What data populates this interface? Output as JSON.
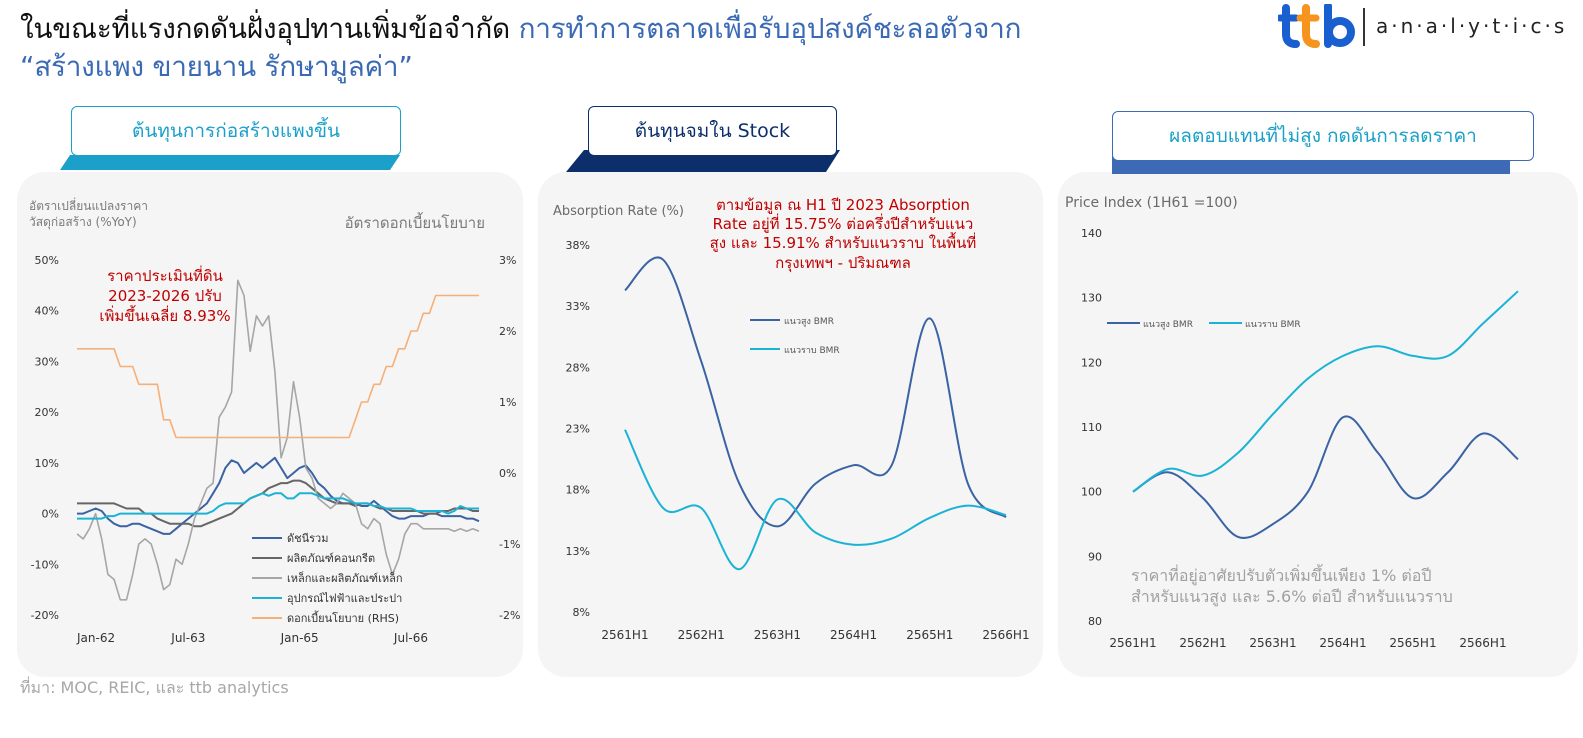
{
  "header": {
    "title_black": "ในขณะที่แรงกดดันฝั่งอุปทานเพิ่มข้อจำกัด",
    "title_blue": "การทำการตลาดเพื่อรับอุปสงค์ชะลอตัวจาก",
    "title_line2": "“สร้างแพง ขายนาน รักษามูลค่า”"
  },
  "logo": {
    "mark": "ttb",
    "text": "a·n·a·l·y·t·i·c·s",
    "colors": [
      "#1a5fcf",
      "#f7941d"
    ]
  },
  "panels": {
    "left": {
      "tab": "ต้นทุนการก่อสร้างแพงขึ้น"
    },
    "middle": {
      "tab": "ต้นทุนจมใน Stock"
    },
    "right": {
      "tab": "ผลตอบแทนที่ไม่สูง กดดันการลดราคา"
    }
  },
  "source": "ที่มา: MOC, REIC, และ ttb analytics",
  "colors": {
    "dark_blue": "#3a63a3",
    "cyan": "#1ab3d6",
    "gray": "#a6a6a6",
    "dark_gray": "#666666",
    "orange": "#f5b07a",
    "red": "#c00000",
    "navy": "#0c2f6b",
    "teal_tab": "#1aa0c9"
  },
  "chart_data": [
    {
      "type": "line",
      "ylabel_lines": [
        "อัตราเปลี่ยนแปลงราคา",
        "วัสดุก่อสร้าง (%YoY)"
      ],
      "y2label": "อัตราดอกเบี้ยนโยบาย",
      "annotation_lines": [
        "ราคาประเมินที่ดิน",
        "2023-2026 ปรับ",
        "เพิ่มขึ้นเฉลี่ย 8.93%"
      ],
      "x_ticks": [
        "Jan-62",
        "Jul-63",
        "Jan-65",
        "Jul-66"
      ],
      "x_tick_index": [
        0,
        18,
        36,
        54
      ],
      "n_points": 66,
      "ylim": [
        -20,
        50
      ],
      "y_ticks": [
        "50%",
        "40%",
        "30%",
        "20%",
        "10%",
        "0%",
        "-10%",
        "-20%"
      ],
      "y2lim": [
        -2,
        3
      ],
      "y2_ticks": [
        "3%",
        "2%",
        "1%",
        "0%",
        "-1%",
        "-2%"
      ],
      "series": [
        {
          "name": "ดัชนีรวม",
          "color_key": "dark_blue",
          "axis": "left",
          "values": [
            0,
            0,
            0.5,
            1,
            0.5,
            -1,
            -2,
            -2.5,
            -2.5,
            -2,
            -2,
            -2.5,
            -3,
            -3.5,
            -4,
            -4,
            -3,
            -2,
            -1,
            0,
            1,
            2,
            4,
            6,
            9,
            10.5,
            10,
            8,
            9,
            10,
            9,
            10,
            11,
            9,
            7,
            8,
            9,
            9.5,
            8,
            6,
            5,
            3.5,
            2.5,
            2,
            2,
            2,
            1.5,
            1.5,
            2.5,
            1.5,
            0.5,
            -0.5,
            -1,
            -1,
            -0.5,
            -0.5,
            -0.5,
            0,
            0,
            -0.5,
            -0.5,
            -0.5,
            -0.5,
            -1,
            -1,
            -1.5
          ]
        },
        {
          "name": "ผลิตภัณฑ์คอนกรีต",
          "color_key": "dark_gray",
          "axis": "left",
          "values": [
            2,
            2,
            2,
            2,
            2,
            2,
            2,
            1.5,
            1,
            1,
            1,
            0,
            0,
            -1,
            -1.5,
            -2,
            -2,
            -2,
            -2,
            -2.5,
            -2.5,
            -2,
            -1.5,
            -1,
            -0.5,
            0,
            1,
            2,
            3,
            3.5,
            4,
            5,
            5.5,
            6,
            6,
            6.5,
            6.5,
            6,
            5,
            4,
            3,
            2.5,
            2,
            2,
            2,
            1.5,
            2,
            2,
            1.5,
            1,
            1,
            0.5,
            0.5,
            0.5,
            0.5,
            0.5,
            0,
            0,
            0,
            0.5,
            0.5,
            1,
            1,
            1,
            0.5,
            0.5
          ]
        },
        {
          "name": "เหล็กและผลิตภัณฑ์เหล็ก",
          "color_key": "gray",
          "axis": "left",
          "values": [
            -4,
            -5,
            -3,
            0,
            -5,
            -12,
            -13,
            -17,
            -17,
            -12,
            -6,
            -5,
            -6,
            -10,
            -15,
            -14,
            -9,
            -10,
            -6,
            -1,
            2,
            5,
            6,
            19,
            21,
            24,
            46,
            43,
            32,
            39,
            37,
            39,
            28,
            11,
            15,
            26,
            19,
            9,
            7,
            3,
            2,
            1,
            2,
            4,
            3,
            2,
            -2,
            -3,
            -1,
            -2,
            -8,
            -12,
            -9,
            -4,
            -2,
            -2,
            -3,
            -3,
            -3,
            -3,
            -3,
            -3.5,
            -3,
            -3.5,
            -3,
            -3.5
          ]
        },
        {
          "name": "อุปกรณ์ไฟฟ้าและประปา",
          "color_key": "cyan",
          "axis": "left",
          "values": [
            -1,
            -1,
            -1,
            -1,
            -1,
            -0.5,
            -0.5,
            0,
            0,
            0,
            0,
            0,
            0,
            0,
            0,
            0,
            0,
            0,
            0,
            0,
            0,
            0,
            0.5,
            1.5,
            2,
            2,
            2,
            2,
            3,
            3.5,
            4,
            3.5,
            4,
            4,
            3,
            3,
            4,
            4,
            4,
            3.5,
            3,
            3,
            3,
            3,
            2.5,
            2,
            2,
            2,
            1.5,
            1.5,
            1,
            1,
            1,
            1,
            1,
            0.5,
            0.5,
            0.5,
            0.5,
            0.5,
            0,
            0.5,
            1.5,
            1,
            1,
            1
          ]
        },
        {
          "name": "ดอกเบี้ยนโยบาย (RHS)",
          "color_key": "orange",
          "axis": "right",
          "values": [
            1.75,
            1.75,
            1.75,
            1.75,
            1.75,
            1.75,
            1.75,
            1.5,
            1.5,
            1.5,
            1.25,
            1.25,
            1.25,
            1.25,
            0.75,
            0.75,
            0.5,
            0.5,
            0.5,
            0.5,
            0.5,
            0.5,
            0.5,
            0.5,
            0.5,
            0.5,
            0.5,
            0.5,
            0.5,
            0.5,
            0.5,
            0.5,
            0.5,
            0.5,
            0.5,
            0.5,
            0.5,
            0.5,
            0.5,
            0.5,
            0.5,
            0.5,
            0.5,
            0.5,
            0.5,
            0.75,
            1,
            1,
            1.25,
            1.25,
            1.5,
            1.5,
            1.75,
            1.75,
            2,
            2,
            2.25,
            2.25,
            2.5,
            2.5,
            2.5,
            2.5,
            2.5,
            2.5,
            2.5,
            2.5
          ]
        }
      ]
    },
    {
      "type": "line",
      "ylabel": "Absorption Rate (%)",
      "annotation_lines": [
        "ตามข้อมูล ณ H1 ปี 2023 Absorption",
        "Rate  อยู่ที่ 15.75% ต่อครึ่งปีสำหรับแนว",
        "สูง และ 15.91% สำหรับแนวราบ  ในพื้นที่",
        "กรุงเทพฯ - ปริมณฑล"
      ],
      "categories": [
        "2561H1",
        "2561H2",
        "2562H1",
        "2562H2",
        "2563H1",
        "2563H2",
        "2564H1",
        "2564H2",
        "2565H1",
        "2565H2",
        "2566H1"
      ],
      "x_ticks": [
        "2561H1",
        "2562H1",
        "2563H1",
        "2564H1",
        "2565H1",
        "2566H1"
      ],
      "ylim": [
        8,
        38
      ],
      "y_ticks": [
        "38%",
        "33%",
        "28%",
        "23%",
        "18%",
        "13%",
        "8%"
      ],
      "legend": "top-left",
      "series": [
        {
          "name": "แนวสูง BMR",
          "color_key": "dark_blue",
          "values": [
            34.3,
            36.8,
            28.5,
            18.5,
            15.0,
            18.5,
            20.0,
            20.0,
            32.0,
            18.5,
            15.75
          ]
        },
        {
          "name": "แนวราบ BMR",
          "color_key": "cyan",
          "values": [
            22.9,
            16.5,
            16.5,
            11.5,
            17.2,
            14.5,
            13.5,
            14.0,
            15.7,
            16.7,
            15.91
          ]
        }
      ]
    },
    {
      "type": "line",
      "ylabel": "Price Index (1H61 =100)",
      "annotation_lines": [
        "ราคาที่อยู่อาศัยปรับตัวเพิ่มขึ้นเพียง 1% ต่อปี",
        "สำหรับแนวสูง และ 5.6% ต่อปี สำหรับแนวราบ"
      ],
      "categories": [
        "2561H1",
        "2561H2",
        "2562H1",
        "2562H2",
        "2563H1",
        "2563H2",
        "2564H1",
        "2564H2",
        "2565H1",
        "2565H2",
        "2566H1",
        "2566H2"
      ],
      "x_ticks": [
        "2561H1",
        "2562H1",
        "2563H1",
        "2564H1",
        "2565H1",
        "2566H1"
      ],
      "ylim": [
        80,
        140
      ],
      "y_ticks": [
        "140",
        "130",
        "120",
        "110",
        "100",
        "90",
        "80"
      ],
      "legend": "top-left",
      "series": [
        {
          "name": "แนวสูง BMR",
          "color_key": "dark_blue",
          "values": [
            100,
            103,
            99,
            93,
            95,
            100,
            111.5,
            106,
            99,
            103,
            109,
            105
          ]
        },
        {
          "name": "แนวราบ BMR",
          "color_key": "cyan",
          "values": [
            100,
            103.5,
            102.5,
            106,
            112,
            117.5,
            121,
            122.5,
            121,
            121,
            126,
            131
          ]
        }
      ]
    }
  ]
}
